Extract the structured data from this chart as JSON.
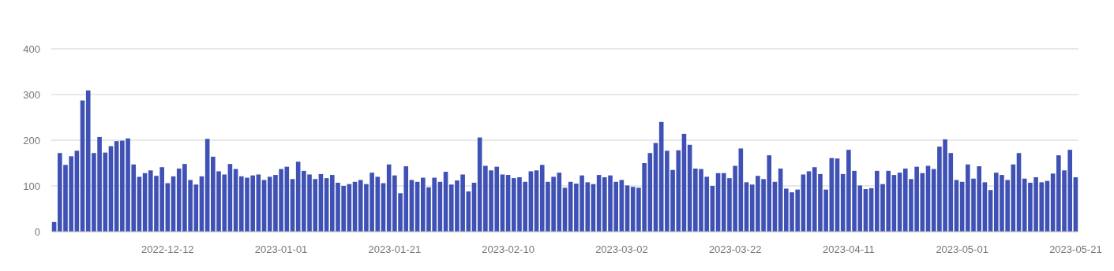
{
  "chart_data": {
    "type": "bar",
    "color": "#3f51b5",
    "ylim": [
      0,
      400
    ],
    "yticks": [
      0,
      100,
      200,
      300,
      400
    ],
    "grid": "y",
    "categories": [
      null,
      null,
      null,
      null,
      null,
      null,
      null,
      null,
      null,
      null,
      null,
      null,
      null,
      null,
      null,
      null,
      null,
      null,
      null,
      null,
      "2022-12-12",
      null,
      null,
      null,
      null,
      null,
      null,
      null,
      null,
      null,
      null,
      null,
      null,
      null,
      null,
      null,
      null,
      null,
      null,
      null,
      "2023-01-01",
      null,
      null,
      null,
      null,
      null,
      null,
      null,
      null,
      null,
      null,
      null,
      null,
      null,
      null,
      null,
      null,
      null,
      null,
      null,
      "2023-01-21",
      null,
      null,
      null,
      null,
      null,
      null,
      null,
      null,
      null,
      null,
      null,
      null,
      null,
      null,
      null,
      null,
      null,
      null,
      null,
      "2023-02-10",
      null,
      null,
      null,
      null,
      null,
      null,
      null,
      null,
      null,
      null,
      null,
      null,
      null,
      null,
      null,
      null,
      null,
      null,
      null,
      "2023-03-02",
      null,
      null,
      null,
      null,
      null,
      null,
      null,
      null,
      null,
      null,
      null,
      null,
      null,
      null,
      null,
      null,
      null,
      null,
      null,
      "2023-03-22",
      null,
      null,
      null,
      null,
      null,
      null,
      null,
      null,
      null,
      null,
      null,
      null,
      null,
      null,
      null,
      null,
      null,
      null,
      null,
      "2023-04-11",
      null,
      null,
      null,
      null,
      null,
      null,
      null,
      null,
      null,
      null,
      null,
      null,
      null,
      null,
      null,
      null,
      null,
      null,
      null,
      "2023-05-01",
      null,
      null,
      null,
      null,
      null,
      null,
      null,
      null,
      null,
      null,
      null,
      null,
      null,
      null,
      null,
      null,
      null,
      null,
      null,
      "2023-05-21"
    ],
    "values": [
      21,
      172,
      146,
      165,
      177,
      287,
      309,
      172,
      207,
      173,
      187,
      198,
      199,
      204,
      147,
      120,
      128,
      134,
      122,
      141,
      106,
      121,
      138,
      148,
      113,
      103,
      121,
      203,
      164,
      132,
      125,
      148,
      137,
      121,
      118,
      123,
      125,
      113,
      120,
      124,
      137,
      142,
      115,
      153,
      133,
      125,
      115,
      126,
      117,
      124,
      107,
      100,
      104,
      109,
      113,
      104,
      129,
      120,
      106,
      147,
      123,
      84,
      143,
      113,
      109,
      118,
      97,
      118,
      109,
      131,
      103,
      112,
      125,
      88,
      107,
      206,
      144,
      134,
      142,
      125,
      124,
      117,
      119,
      109,
      132,
      134,
      146,
      109,
      120,
      129,
      96,
      109,
      105,
      123,
      108,
      104,
      124,
      119,
      123,
      109,
      113,
      101,
      98,
      96,
      150,
      172,
      194,
      240,
      177,
      135,
      178,
      214,
      190,
      138,
      137,
      120,
      100,
      128,
      128,
      117,
      144,
      182,
      108,
      103,
      122,
      115,
      167,
      109,
      138,
      94,
      86,
      92,
      125,
      132,
      141,
      126,
      92,
      161,
      160,
      126,
      179,
      133,
      101,
      93,
      95,
      133,
      104,
      133,
      124,
      129,
      138,
      115,
      142,
      128,
      144,
      137,
      186,
      202,
      172,
      113,
      109,
      147,
      116,
      143,
      108,
      91,
      129,
      124,
      113,
      147,
      172,
      116,
      107,
      119,
      108,
      111,
      127,
      167,
      134,
      179,
      119
    ]
  }
}
